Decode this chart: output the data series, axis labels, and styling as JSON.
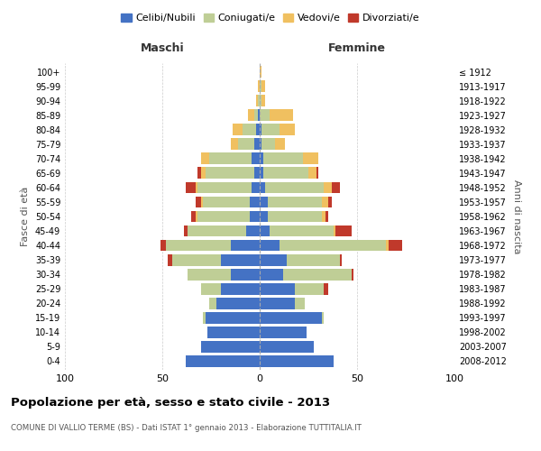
{
  "age_groups": [
    "0-4",
    "5-9",
    "10-14",
    "15-19",
    "20-24",
    "25-29",
    "30-34",
    "35-39",
    "40-44",
    "45-49",
    "50-54",
    "55-59",
    "60-64",
    "65-69",
    "70-74",
    "75-79",
    "80-84",
    "85-89",
    "90-94",
    "95-99",
    "100+"
  ],
  "birth_years": [
    "2008-2012",
    "2003-2007",
    "1998-2002",
    "1993-1997",
    "1988-1992",
    "1983-1987",
    "1978-1982",
    "1973-1977",
    "1968-1972",
    "1963-1967",
    "1958-1962",
    "1953-1957",
    "1948-1952",
    "1943-1947",
    "1938-1942",
    "1933-1937",
    "1928-1932",
    "1923-1927",
    "1918-1922",
    "1913-1917",
    "≤ 1912"
  ],
  "colors": {
    "celibi": "#4472C4",
    "coniugati": "#BFCE96",
    "vedovi": "#F0C060",
    "divorziati": "#C0392B"
  },
  "maschi": {
    "celibi": [
      38,
      30,
      27,
      28,
      22,
      20,
      15,
      20,
      15,
      7,
      5,
      5,
      4,
      3,
      4,
      3,
      2,
      1,
      0,
      0,
      0
    ],
    "coniugati": [
      0,
      0,
      0,
      1,
      4,
      10,
      22,
      25,
      33,
      30,
      27,
      24,
      28,
      25,
      22,
      8,
      7,
      2,
      1,
      0,
      0
    ],
    "vedovi": [
      0,
      0,
      0,
      0,
      0,
      0,
      0,
      0,
      0,
      0,
      1,
      1,
      1,
      2,
      4,
      4,
      5,
      3,
      1,
      1,
      0
    ],
    "divorziati": [
      0,
      0,
      0,
      0,
      0,
      0,
      0,
      2,
      3,
      2,
      2,
      3,
      5,
      2,
      0,
      0,
      0,
      0,
      0,
      0,
      0
    ]
  },
  "femmine": {
    "celibi": [
      38,
      28,
      24,
      32,
      18,
      18,
      12,
      14,
      10,
      5,
      4,
      4,
      3,
      2,
      2,
      1,
      1,
      0,
      0,
      0,
      0
    ],
    "coniugati": [
      0,
      0,
      0,
      1,
      5,
      15,
      35,
      27,
      55,
      33,
      28,
      28,
      30,
      23,
      20,
      7,
      9,
      5,
      1,
      1,
      0
    ],
    "vedovi": [
      0,
      0,
      0,
      0,
      0,
      0,
      0,
      0,
      1,
      1,
      2,
      3,
      4,
      4,
      8,
      5,
      8,
      12,
      2,
      2,
      1
    ],
    "divorziati": [
      0,
      0,
      0,
      0,
      0,
      2,
      1,
      1,
      7,
      8,
      1,
      2,
      4,
      1,
      0,
      0,
      0,
      0,
      0,
      0,
      0
    ]
  },
  "xlim": 100,
  "title": "Popolazione per età, sesso e stato civile - 2013",
  "subtitle": "COMUNE DI VALLIO TERME (BS) - Dati ISTAT 1° gennaio 2013 - Elaborazione TUTTITALIA.IT",
  "xlabel_left": "Maschi",
  "xlabel_right": "Femmine",
  "ylabel_left": "Fasce di età",
  "ylabel_right": "Anni di nascita",
  "legend_labels": [
    "Celibi/Nubili",
    "Coniugati/e",
    "Vedovi/e",
    "Divorziati/e"
  ]
}
